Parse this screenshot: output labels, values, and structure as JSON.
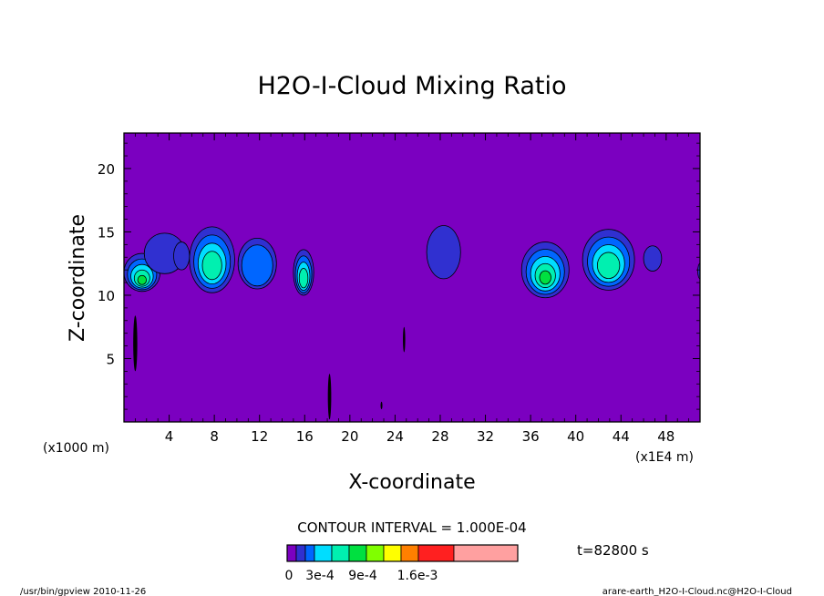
{
  "chart_data": {
    "type": "heatmap",
    "title": "H2O-I-Cloud Mixing Ratio",
    "xlabel": "X-coordinate",
    "ylabel": "Z-coordinate",
    "x_units_left": "(x1000 m)",
    "x_units_right": "(x1E4 m)",
    "xlim": [
      0,
      51
    ],
    "ylim": [
      0,
      22.8
    ],
    "x_ticks": [
      4,
      8,
      12,
      16,
      20,
      24,
      28,
      32,
      36,
      40,
      44,
      48
    ],
    "x_tick_labels": [
      "4",
      "8",
      "12",
      "16",
      "20",
      "24",
      "28",
      "32",
      "36",
      "40",
      "44",
      "48"
    ],
    "y_ticks": [
      5,
      10,
      15,
      20
    ],
    "y_tick_labels": [
      "5",
      "10",
      "15",
      "20"
    ],
    "contour_interval_text": "CONTOUR INTERVAL = 1.000E-04",
    "time_text": "t=82800 s",
    "colorbar": {
      "colors": [
        "#7b00c0",
        "#3030d0",
        "#0066ff",
        "#00ddff",
        "#00f0b0",
        "#00e040",
        "#80ff00",
        "#ffff00",
        "#ff8000",
        "#ff2020",
        "#ffa0a0"
      ],
      "tick_labels": [
        "0",
        "3e-4",
        "9e-4",
        "1.6e-3"
      ]
    },
    "cells": [
      {
        "x": 1.6,
        "z": 11.8,
        "rx": 1.6,
        "rz": 1.5,
        "levels": 5
      },
      {
        "x": 3.6,
        "z": 13.3,
        "rx": 1.8,
        "rz": 1.6,
        "levels": 1
      },
      {
        "x": 5.1,
        "z": 13.1,
        "rx": 0.7,
        "rz": 1.1,
        "levels": 1
      },
      {
        "x": 7.8,
        "z": 12.8,
        "rx": 2.0,
        "rz": 2.6,
        "levels": 4
      },
      {
        "x": 11.8,
        "z": 12.5,
        "rx": 1.7,
        "rz": 2.0,
        "levels": 2
      },
      {
        "x": 15.9,
        "z": 11.8,
        "rx": 0.9,
        "rz": 1.8,
        "levels": 4
      },
      {
        "x": 28.3,
        "z": 13.4,
        "rx": 1.5,
        "rz": 2.1,
        "levels": 1
      },
      {
        "x": 37.3,
        "z": 12.0,
        "rx": 2.1,
        "rz": 2.2,
        "levels": 5
      },
      {
        "x": 42.9,
        "z": 12.8,
        "rx": 2.3,
        "rz": 2.4,
        "levels": 4
      },
      {
        "x": 46.8,
        "z": 12.9,
        "rx": 0.8,
        "rz": 1.0,
        "levels": 1
      },
      {
        "x": 51.0,
        "z": 11.9,
        "rx": 0.2,
        "rz": 0.6,
        "levels": 1
      }
    ],
    "thin_features": [
      {
        "x": 1.0,
        "z": 6.2,
        "rx": 0.18,
        "rz": 2.2
      },
      {
        "x": 18.2,
        "z": 2.0,
        "rx": 0.15,
        "rz": 1.8
      },
      {
        "x": 24.8,
        "z": 6.5,
        "rx": 0.1,
        "rz": 1.0
      },
      {
        "x": 22.8,
        "z": 1.3,
        "rx": 0.08,
        "rz": 0.3
      }
    ]
  },
  "footer": {
    "left": "/usr/bin/gpview  2010-11-26",
    "right": "arare-earth_H2O-I-Cloud.nc@H2O-I-Cloud"
  }
}
